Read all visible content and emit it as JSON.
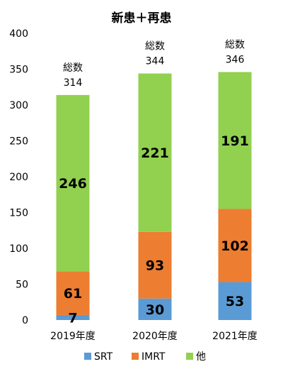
{
  "chart_data": {
    "type": "bar",
    "stacked": true,
    "title": "新患＋再患",
    "categories": [
      "2019年度",
      "2020年度",
      "2021年度"
    ],
    "ylim": [
      0,
      400
    ],
    "yticks": [
      0,
      50,
      100,
      150,
      200,
      250,
      300,
      350,
      400
    ],
    "grid": false,
    "legend_position": "bottom",
    "total_label": "総数",
    "totals": [
      314,
      344,
      346
    ],
    "series": [
      {
        "name": "SRT",
        "color": "#5B9BD5",
        "values": [
          7,
          30,
          53
        ]
      },
      {
        "name": "IMRT",
        "color": "#ED7D31",
        "values": [
          61,
          93,
          102
        ]
      },
      {
        "name": "他",
        "color": "#92D050",
        "values": [
          246,
          221,
          191
        ]
      }
    ]
  }
}
